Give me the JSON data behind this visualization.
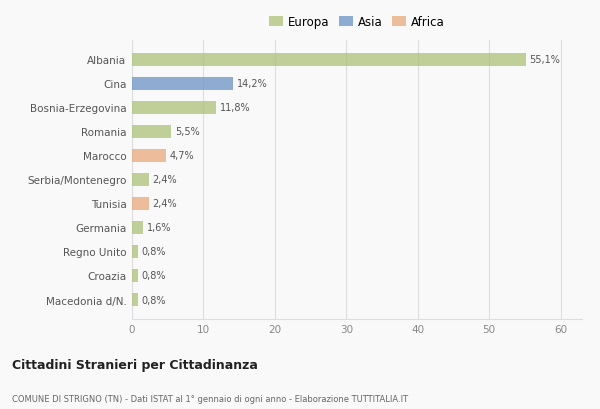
{
  "categories": [
    "Albania",
    "Cina",
    "Bosnia-Erzegovina",
    "Romania",
    "Marocco",
    "Serbia/Montenegro",
    "Tunisia",
    "Germania",
    "Regno Unito",
    "Croazia",
    "Macedonia d/N."
  ],
  "values": [
    55.1,
    14.2,
    11.8,
    5.5,
    4.7,
    2.4,
    2.4,
    1.6,
    0.8,
    0.8,
    0.8
  ],
  "labels": [
    "55,1%",
    "14,2%",
    "11,8%",
    "5,5%",
    "4,7%",
    "2,4%",
    "2,4%",
    "1,6%",
    "0,8%",
    "0,8%",
    "0,8%"
  ],
  "colors": [
    "#adc178",
    "#6b93c4",
    "#adc178",
    "#adc178",
    "#e8a87c",
    "#adc178",
    "#e8a87c",
    "#adc178",
    "#adc178",
    "#adc178",
    "#adc178"
  ],
  "legend_labels": [
    "Europa",
    "Asia",
    "Africa"
  ],
  "legend_colors": [
    "#adc178",
    "#6b93c4",
    "#e8a87c"
  ],
  "xlim": [
    0,
    63
  ],
  "xticks": [
    0,
    10,
    20,
    30,
    40,
    50,
    60
  ],
  "title_main": "Cittadini Stranieri per Cittadinanza",
  "title_sub": "COMUNE DI STRIGNO (TN) - Dati ISTAT al 1° gennaio di ogni anno - Elaborazione TUTTITALIA.IT",
  "bg_color": "#f9f9f9",
  "grid_color": "#dddddd",
  "bar_height": 0.55,
  "bar_alpha": 0.75
}
